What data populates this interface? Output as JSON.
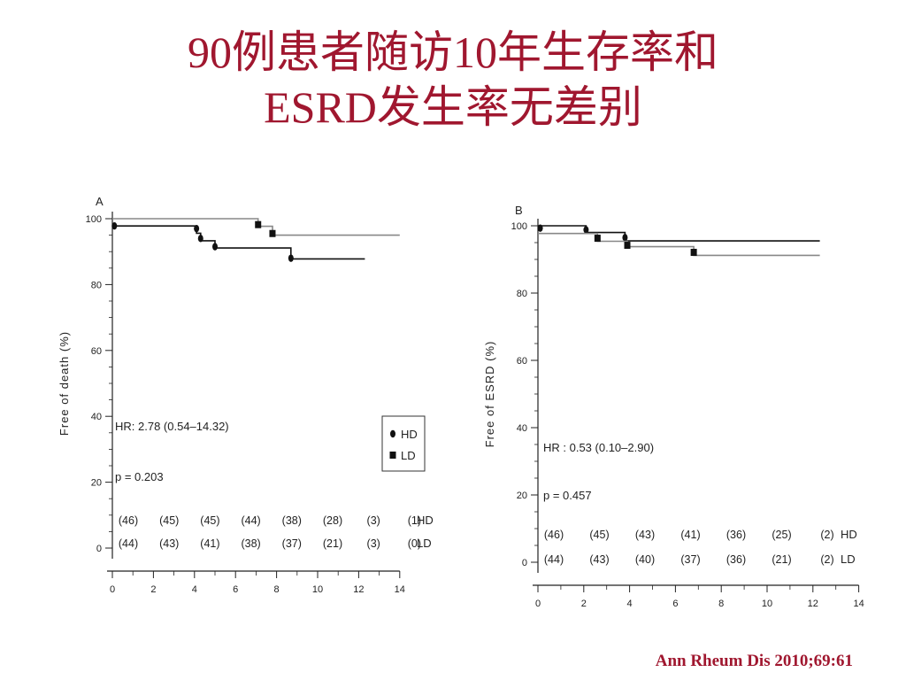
{
  "slide": {
    "title_line1": "90例患者随访10年生存率和",
    "title_line2": "ESRD发生率无差别",
    "citation": "Ann Rheum Dis 2010;69:61"
  },
  "chart_data": [
    {
      "type": "line",
      "panel_label": "A",
      "ylabel": "Free of death (%)",
      "xlim": [
        0,
        14
      ],
      "ylim": [
        0,
        100
      ],
      "x_ticks": [
        "0",
        "2",
        "4",
        "6",
        "8",
        "10",
        "12",
        "14"
      ],
      "y_ticks": [
        "0",
        "20",
        "40",
        "60",
        "80",
        "100"
      ],
      "hr_text": "HR: 2.78 (0.54–14.32)",
      "p_text": "p = 0.203",
      "legend": {
        "hd": "HD",
        "ld": "LD"
      },
      "series": [
        {
          "name": "HD",
          "color": "#111111",
          "points": [
            [
              0,
              97.8
            ],
            [
              4.1,
              97.8
            ],
            [
              4.1,
              95.6
            ],
            [
              4.3,
              95.6
            ],
            [
              4.3,
              93.3
            ],
            [
              5.0,
              93.3
            ],
            [
              5.0,
              91.1
            ],
            [
              8.7,
              91.1
            ],
            [
              8.7,
              87.8
            ],
            [
              12.3,
              87.8
            ]
          ],
          "censored": [
            [
              0.1,
              97.8
            ],
            [
              4.1,
              97.0
            ],
            [
              4.3,
              94.0
            ],
            [
              5.0,
              91.5
            ],
            [
              8.7,
              88.0
            ]
          ]
        },
        {
          "name": "LD",
          "color": "#888888",
          "points": [
            [
              0,
              100
            ],
            [
              7.1,
              100
            ],
            [
              7.1,
              97.7
            ],
            [
              7.8,
              97.7
            ],
            [
              7.8,
              95
            ],
            [
              14,
              95
            ]
          ],
          "censored": [
            [
              7.1,
              98.2
            ],
            [
              7.8,
              95.5
            ]
          ]
        }
      ],
      "at_risk": {
        "HD": [
          "(46)",
          "(45)",
          "(45)",
          "(44)",
          "(38)",
          "(28)",
          "(3)",
          "(1)"
        ],
        "LD": [
          "(44)",
          "(43)",
          "(41)",
          "(38)",
          "(37)",
          "(21)",
          "(3)",
          "(0)"
        ]
      }
    },
    {
      "type": "line",
      "panel_label": "B",
      "ylabel": "Free of ESRD (%)",
      "xlim": [
        0,
        14
      ],
      "ylim": [
        0,
        100
      ],
      "x_ticks": [
        "0",
        "2",
        "4",
        "6",
        "8",
        "10",
        "12",
        "14"
      ],
      "y_ticks": [
        "0",
        "20",
        "40",
        "60",
        "80",
        "100"
      ],
      "hr_text": "HR : 0.53 (0.10–2.90)",
      "p_text": "p = 0.457",
      "series": [
        {
          "name": "HD",
          "color": "#111111",
          "points": [
            [
              0,
              100
            ],
            [
              2.1,
              100
            ],
            [
              2.1,
              98
            ],
            [
              3.8,
              98
            ],
            [
              3.8,
              95.5
            ],
            [
              12.3,
              95.5
            ]
          ],
          "censored": [
            [
              0.1,
              99.3
            ],
            [
              2.1,
              98.8
            ],
            [
              3.8,
              96.5
            ]
          ]
        },
        {
          "name": "LD",
          "color": "#888888",
          "points": [
            [
              0,
              97.7
            ],
            [
              2.6,
              97.7
            ],
            [
              2.6,
              95.4
            ],
            [
              3.9,
              95.4
            ],
            [
              3.9,
              93.8
            ],
            [
              6.8,
              93.8
            ],
            [
              6.8,
              91.2
            ],
            [
              12.3,
              91.2
            ]
          ],
          "censored": [
            [
              2.6,
              96.3
            ],
            [
              3.9,
              94.2
            ],
            [
              6.8,
              92.1
            ]
          ]
        }
      ],
      "at_risk": {
        "HD": [
          "(46)",
          "(45)",
          "(43)",
          "(41)",
          "(36)",
          "(25)",
          "(2)"
        ],
        "LD": [
          "(44)",
          "(43)",
          "(40)",
          "(37)",
          "(36)",
          "(21)",
          "(2)"
        ]
      }
    }
  ]
}
